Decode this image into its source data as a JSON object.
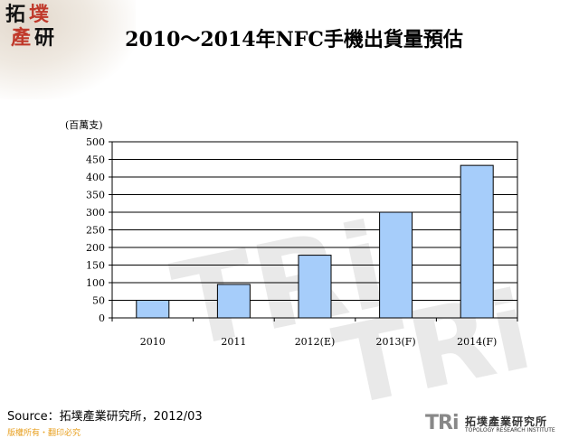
{
  "logo_top": {
    "chars": [
      "拓",
      "墣",
      "產",
      "研"
    ]
  },
  "title": "2010～2014年NFC手機出貨量預估",
  "source": "Source：拓墣產業研究所，2012/03",
  "copyright": "版權所有・翻印必究",
  "footer_logo": {
    "mark": "TRi",
    "name_cn": "拓墣產業研究所",
    "name_en": "TOPOLOGY RESEARCH INSTITUTE"
  },
  "watermark": "TRi",
  "colors": {
    "bar_fill": "#a6cdfa",
    "bar_stroke": "#000000",
    "copyright": "#e8a020"
  },
  "chart_data": {
    "type": "bar",
    "title": "2010～2014年NFC手機出貨量預估",
    "y_unit_label": "(百萬支)",
    "categories": [
      "2010",
      "2011",
      "2012(E)",
      "2013(F)",
      "2014(F)"
    ],
    "values": [
      50,
      95,
      178,
      300,
      433
    ],
    "ylim": [
      0,
      500
    ],
    "yticks": [
      0,
      50,
      100,
      150,
      200,
      250,
      300,
      350,
      400,
      450,
      500
    ],
    "grid": true,
    "legend": "none"
  }
}
